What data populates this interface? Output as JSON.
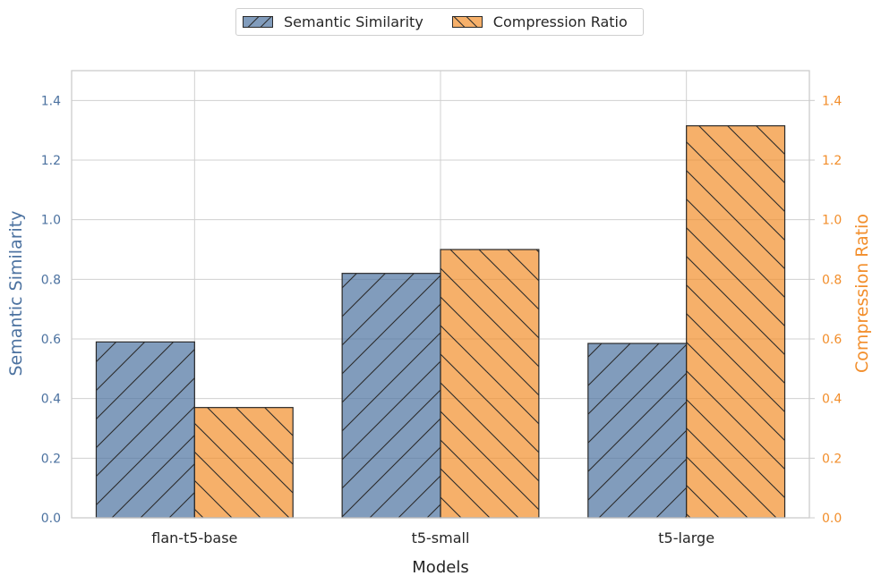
{
  "chart_data": {
    "type": "bar",
    "categories": [
      "flan-t5-base",
      "t5-small",
      "t5-large"
    ],
    "series": [
      {
        "name": "Semantic Similarity",
        "values": [
          0.59,
          0.82,
          0.585
        ],
        "axis": "left",
        "color": "#4c72a0",
        "hatch": "/"
      },
      {
        "name": "Compression Ratio",
        "values": [
          0.37,
          0.9,
          1.315
        ],
        "axis": "right",
        "color": "#f28e2b",
        "hatch": "\\"
      }
    ],
    "xlabel": "Models",
    "ylabel_left": "Semantic Similarity",
    "ylabel_right": "Compression Ratio",
    "ylim": [
      0,
      1.5
    ],
    "yticks": [
      "0.0",
      "0.2",
      "0.4",
      "0.6",
      "0.8",
      "1.0",
      "1.2",
      "1.4"
    ],
    "grid": true,
    "legend_position": "top-center",
    "left_axis_color": "#4c72a0",
    "right_axis_color": "#f28e2b"
  }
}
